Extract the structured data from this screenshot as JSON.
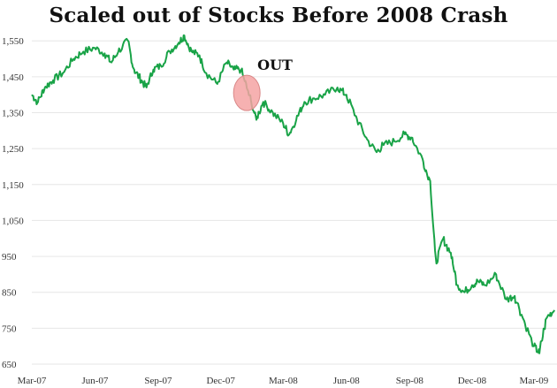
{
  "chart_data": {
    "type": "line",
    "title": "Scaled out of Stocks Before 2008 Crash",
    "xlabel": "",
    "ylabel": "",
    "ylim": [
      650,
      1580
    ],
    "yticks": [
      650,
      750,
      850,
      950,
      1050,
      1150,
      1250,
      1350,
      1450,
      1550
    ],
    "yticklabels": [
      "650",
      "750",
      "850",
      "950",
      "1,050",
      "1,150",
      "1,250",
      "1,350",
      "1,450",
      "1,550"
    ],
    "xticks": [
      "Mar-07",
      "Jun-07",
      "Sep-07",
      "Dec-07",
      "Mar-08",
      "Jun-08",
      "Sep-08",
      "Dec-08",
      "Mar-09"
    ],
    "grid": "horizontal",
    "series": [
      {
        "color": "#19a347",
        "x": [
          "2007-03-01",
          "2007-03-10",
          "2007-03-20",
          "2007-04-01",
          "2007-04-15",
          "2007-05-01",
          "2007-05-15",
          "2007-06-01",
          "2007-06-15",
          "2007-06-25",
          "2007-07-05",
          "2007-07-19",
          "2007-07-28",
          "2007-08-08",
          "2007-08-15",
          "2007-08-25",
          "2007-09-05",
          "2007-09-18",
          "2007-10-01",
          "2007-10-09",
          "2007-10-20",
          "2007-10-31",
          "2007-11-10",
          "2007-11-26",
          "2007-12-10",
          "2007-12-20",
          "2007-12-31",
          "2008-01-10",
          "2008-01-22",
          "2008-02-01",
          "2008-02-15",
          "2008-03-01",
          "2008-03-10",
          "2008-03-20",
          "2008-04-01",
          "2008-04-15",
          "2008-05-01",
          "2008-05-19",
          "2008-06-01",
          "2008-06-15",
          "2008-06-30",
          "2008-07-15",
          "2008-07-25",
          "2008-08-10",
          "2008-08-25",
          "2008-09-05",
          "2008-09-20",
          "2008-10-01",
          "2008-10-10",
          "2008-10-20",
          "2008-10-31",
          "2008-11-10",
          "2008-11-20",
          "2008-12-01",
          "2008-12-10",
          "2008-12-20",
          "2009-01-05",
          "2009-01-20",
          "2009-02-01",
          "2009-02-15",
          "2009-03-01",
          "2009-03-09",
          "2009-03-20",
          "2009-03-31"
        ],
        "values": [
          1400,
          1380,
          1420,
          1440,
          1460,
          1500,
          1520,
          1530,
          1515,
          1490,
          1520,
          1550,
          1470,
          1440,
          1420,
          1470,
          1480,
          1520,
          1545,
          1565,
          1520,
          1510,
          1460,
          1430,
          1490,
          1470,
          1470,
          1410,
          1330,
          1380,
          1350,
          1320,
          1290,
          1330,
          1380,
          1390,
          1400,
          1420,
          1400,
          1340,
          1280,
          1240,
          1260,
          1270,
          1290,
          1280,
          1220,
          1160,
          930,
          1000,
          960,
          870,
          850,
          870,
          880,
          870,
          900,
          830,
          840,
          770,
          700,
          680,
          780,
          800
        ],
        "values_note": ""
      }
    ],
    "annotation": {
      "label": "OUT",
      "highlight_color": "#f4a3a3",
      "date": "2008-01-08",
      "value": 1405
    }
  }
}
